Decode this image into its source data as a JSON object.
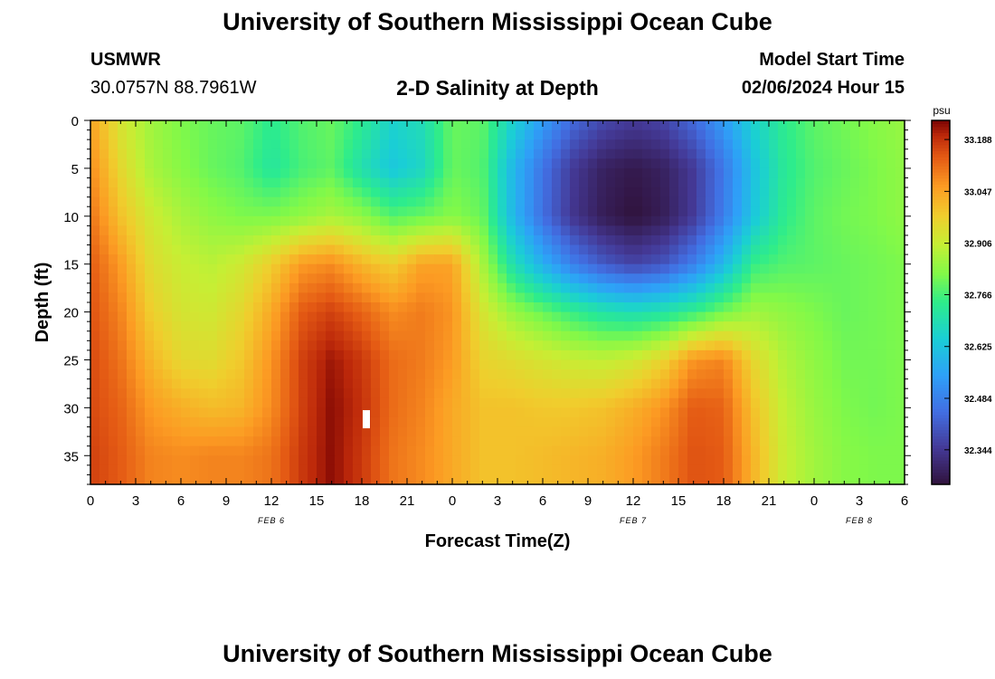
{
  "header": {
    "title": "University of Southern Mississippi Ocean Cube",
    "station": "USMWR",
    "coords": "30.0757N  88.7961W",
    "subtitle": "2-D Salinity at Depth",
    "model_start_label": "Model Start Time",
    "model_start_value": "02/06/2024 Hour 15"
  },
  "footer": {
    "title": "University of Southern Mississippi Ocean Cube"
  },
  "chart_data": {
    "type": "heatmap",
    "title": "2-D Salinity at Depth",
    "xlabel": "Forecast Time(Z)",
    "ylabel": "Depth (ft)",
    "x_range_hours": [
      0,
      54
    ],
    "y_range_ft": [
      0,
      38
    ],
    "y_inverted": true,
    "x_tick_labels": [
      "0",
      "3",
      "6",
      "9",
      "12",
      "15",
      "18",
      "21",
      "0",
      "3",
      "6",
      "9",
      "12",
      "15",
      "18",
      "21",
      "0",
      "3",
      "6"
    ],
    "y_tick_labels": [
      "0",
      "5",
      "10",
      "15",
      "20",
      "25",
      "30",
      "35"
    ],
    "y_tick_values": [
      0,
      5,
      10,
      15,
      20,
      25,
      30,
      35
    ],
    "date_labels": [
      {
        "text": "FEB 6",
        "hour": 12
      },
      {
        "text": "FEB 7",
        "hour": 36
      },
      {
        "text": "FEB 8",
        "hour": 51
      }
    ],
    "colorbar": {
      "unit": "psu",
      "min": 32.25,
      "max": 33.24,
      "tick_labels": [
        "33.188",
        "33.047",
        "32.906",
        "32.766",
        "32.625",
        "32.484",
        "32.344"
      ],
      "tick_values": [
        33.188,
        33.047,
        32.906,
        32.766,
        32.625,
        32.484,
        32.344
      ]
    },
    "rows_depth_ft": [
      0,
      5,
      10,
      15,
      20,
      25,
      30,
      35,
      38
    ],
    "columns_hour": [
      0,
      2,
      4,
      6,
      8,
      10,
      12,
      14,
      16,
      18,
      20,
      22,
      24,
      26,
      28,
      30,
      32,
      34,
      36,
      38,
      40,
      42,
      44,
      46,
      48,
      50,
      52,
      54
    ],
    "values_psu": [
      [
        33.05,
        32.93,
        32.86,
        32.82,
        32.8,
        32.79,
        32.74,
        32.78,
        32.8,
        32.74,
        32.66,
        32.69,
        32.8,
        32.79,
        32.66,
        32.54,
        32.44,
        32.38,
        32.35,
        32.37,
        32.44,
        32.54,
        32.66,
        32.74,
        32.79,
        32.81,
        32.83,
        32.85
      ],
      [
        33.08,
        32.96,
        32.87,
        32.83,
        32.8,
        32.78,
        32.72,
        32.77,
        32.79,
        32.7,
        32.63,
        32.67,
        32.8,
        32.78,
        32.6,
        32.46,
        32.35,
        32.29,
        32.27,
        32.29,
        32.35,
        32.47,
        32.62,
        32.73,
        32.78,
        32.8,
        32.82,
        32.84
      ],
      [
        33.11,
        33.0,
        32.92,
        32.87,
        32.84,
        32.82,
        32.82,
        32.84,
        32.87,
        32.84,
        32.78,
        32.8,
        32.83,
        32.8,
        32.6,
        32.45,
        32.34,
        32.28,
        32.25,
        32.28,
        32.35,
        32.48,
        32.63,
        32.74,
        32.79,
        32.81,
        32.82,
        32.84
      ],
      [
        33.14,
        33.06,
        32.95,
        32.91,
        32.89,
        32.92,
        32.98,
        33.06,
        33.08,
        33.02,
        32.98,
        33.05,
        33.05,
        32.87,
        32.7,
        32.58,
        32.48,
        32.41,
        32.37,
        32.4,
        32.48,
        32.6,
        32.75,
        32.78,
        32.79,
        32.8,
        32.81,
        32.82
      ],
      [
        33.15,
        33.09,
        32.98,
        32.93,
        32.92,
        32.96,
        33.04,
        33.14,
        33.17,
        33.13,
        33.08,
        33.1,
        33.07,
        32.93,
        32.85,
        32.8,
        32.75,
        32.71,
        32.69,
        32.71,
        32.75,
        32.81,
        32.86,
        32.84,
        32.82,
        32.8,
        32.81,
        32.82
      ],
      [
        33.16,
        33.11,
        33.02,
        32.96,
        32.95,
        32.99,
        33.07,
        33.17,
        33.22,
        33.18,
        33.12,
        33.1,
        33.06,
        32.97,
        32.95,
        32.93,
        32.91,
        32.9,
        32.92,
        32.97,
        33.07,
        33.09,
        32.96,
        32.88,
        32.84,
        32.81,
        32.81,
        32.82
      ],
      [
        33.16,
        33.13,
        33.06,
        33.03,
        33.01,
        33.02,
        33.08,
        33.17,
        33.23,
        33.19,
        33.12,
        33.09,
        33.04,
        33.0,
        33.0,
        32.99,
        32.99,
        33.0,
        33.03,
        33.07,
        33.14,
        33.13,
        33.0,
        32.9,
        32.85,
        32.82,
        32.81,
        32.82
      ],
      [
        33.17,
        33.14,
        33.09,
        33.08,
        33.09,
        33.09,
        33.11,
        33.18,
        33.23,
        33.18,
        33.11,
        33.08,
        33.04,
        33.0,
        33.0,
        33.01,
        33.02,
        33.03,
        33.06,
        33.1,
        33.15,
        33.14,
        33.02,
        32.91,
        32.86,
        32.83,
        32.82,
        32.82
      ],
      [
        33.17,
        33.14,
        33.09,
        33.08,
        33.09,
        33.09,
        33.11,
        33.18,
        33.23,
        33.18,
        33.11,
        33.08,
        33.04,
        33.0,
        33.0,
        33.01,
        33.02,
        33.03,
        33.06,
        33.1,
        33.15,
        33.14,
        33.02,
        32.91,
        32.86,
        32.83,
        32.82,
        32.82
      ]
    ]
  }
}
